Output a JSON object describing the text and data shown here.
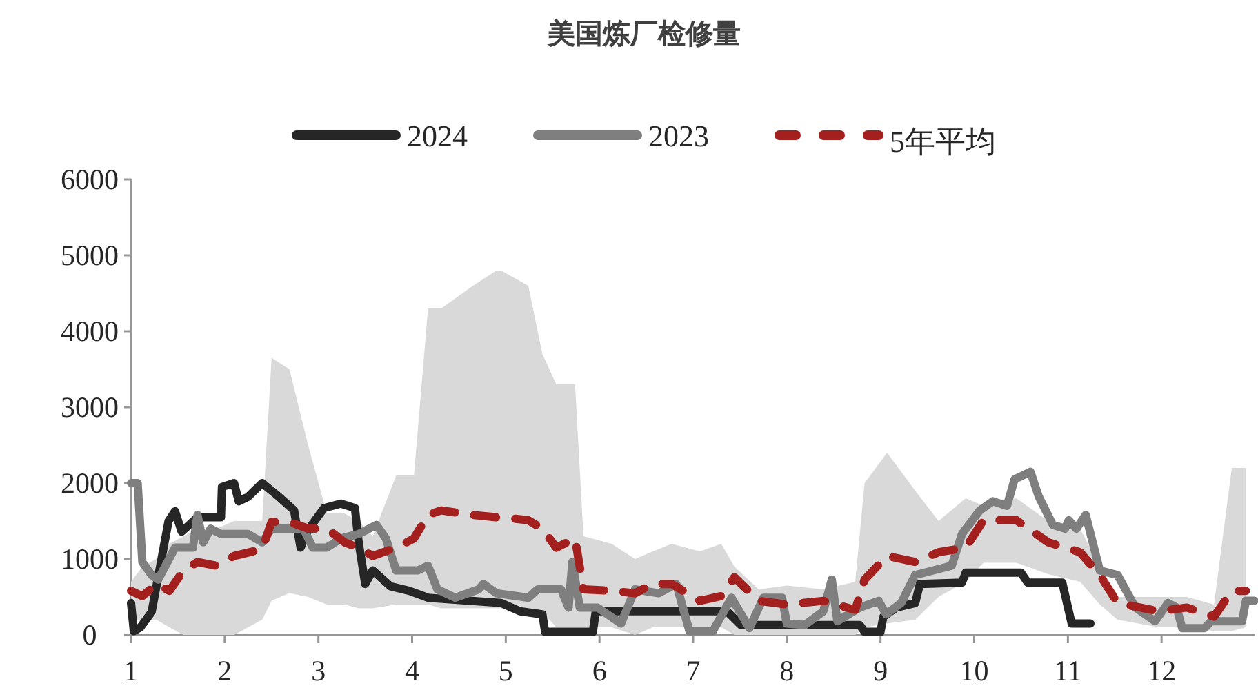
{
  "chart_data": {
    "type": "line",
    "title": "美国炼厂检修量",
    "x": [
      1.0,
      1.03,
      1.1,
      1.22,
      1.4,
      1.47,
      1.54,
      1.71,
      1.96,
      1.97,
      2.1,
      2.15,
      2.25,
      2.4,
      2.55,
      2.74,
      2.81,
      2.9,
      3.06,
      3.24,
      3.39,
      3.43,
      3.5,
      3.58,
      3.77,
      3.97,
      4.17,
      4.95,
      5.15,
      5.39,
      5.42,
      5.93,
      5.96,
      7.36,
      7.51,
      8.78,
      8.83,
      9.0,
      9.03,
      9.17,
      9.37,
      9.42,
      9.87,
      9.91,
      10.5,
      10.57,
      10.94,
      11.04,
      11.24
    ],
    "series": [
      {
        "name": "2024",
        "color": "#262626",
        "line_style": "solid",
        "values": [
          420,
          50,
          100,
          300,
          1500,
          1630,
          1360,
          1550,
          1550,
          1950,
          2000,
          1760,
          1820,
          2000,
          1850,
          1640,
          1150,
          1400,
          1670,
          1730,
          1670,
          1220,
          670,
          850,
          640,
          580,
          490,
          420,
          310,
          270,
          40,
          40,
          310,
          310,
          130,
          130,
          40,
          40,
          240,
          360,
          420,
          670,
          690,
          820,
          820,
          690,
          690,
          150,
          150
        ]
      },
      {
        "name": "2023",
        "color": "#7f7f7f",
        "line_style": "solid",
        "x": [
          1.0,
          1.07,
          1.12,
          1.22,
          1.29,
          1.47,
          1.66,
          1.71,
          1.77,
          1.85,
          1.96,
          2.25,
          2.4,
          2.5,
          2.84,
          2.94,
          3.09,
          3.24,
          3.43,
          3.62,
          3.72,
          3.83,
          4.06,
          4.17,
          4.27,
          4.46,
          4.71,
          4.76,
          4.9,
          5.24,
          5.34,
          5.59,
          5.67,
          5.71,
          5.79,
          5.98,
          6.23,
          6.38,
          6.63,
          6.82,
          6.96,
          7.21,
          7.41,
          7.6,
          7.75,
          7.95,
          8.0,
          8.19,
          8.39,
          8.48,
          8.54,
          8.78,
          8.98,
          9.06,
          9.22,
          9.37,
          9.76,
          9.87,
          10.06,
          10.2,
          10.35,
          10.43,
          10.6,
          10.69,
          10.84,
          10.97,
          11.01,
          11.09,
          11.19,
          11.34,
          11.53,
          11.72,
          11.93,
          12.07,
          12.16,
          12.22,
          12.46,
          12.53,
          12.86,
          12.9,
          12.99
        ],
        "values": [
          2000,
          2000,
          960,
          790,
          730,
          1150,
          1150,
          1580,
          1220,
          1400,
          1330,
          1330,
          1220,
          1400,
          1400,
          1150,
          1150,
          1270,
          1330,
          1450,
          1270,
          850,
          850,
          910,
          600,
          490,
          600,
          670,
          550,
          490,
          600,
          600,
          360,
          960,
          360,
          360,
          150,
          600,
          550,
          670,
          50,
          50,
          490,
          90,
          490,
          490,
          150,
          130,
          310,
          730,
          180,
          360,
          450,
          270,
          420,
          790,
          910,
          1330,
          1640,
          1760,
          1700,
          2050,
          2150,
          1820,
          1450,
          1400,
          1510,
          1400,
          1580,
          850,
          790,
          360,
          180,
          420,
          360,
          90,
          90,
          180,
          180,
          450,
          450
        ]
      },
      {
        "name": "5年平均",
        "color": "#a3201f",
        "line_style": "dashed",
        "x": [
          1.0,
          1.12,
          1.27,
          1.41,
          1.56,
          1.71,
          1.91,
          2.1,
          2.4,
          2.5,
          2.69,
          2.89,
          3.09,
          3.28,
          3.43,
          3.58,
          3.83,
          4.02,
          4.17,
          4.31,
          4.65,
          4.9,
          4.95,
          5.24,
          5.39,
          5.54,
          5.74,
          5.83,
          6.13,
          6.38,
          6.57,
          6.77,
          7.07,
          7.3,
          7.44,
          7.7,
          8.0,
          8.39,
          8.73,
          8.83,
          9.07,
          9.37,
          9.62,
          9.91,
          10.1,
          10.45,
          10.79,
          11.13,
          11.34,
          11.53,
          11.97,
          12.27,
          12.56,
          12.75,
          12.9
        ],
        "values": [
          580,
          510,
          670,
          580,
          850,
          960,
          910,
          1040,
          1130,
          1490,
          1490,
          1400,
          1400,
          1220,
          1150,
          1040,
          1150,
          1270,
          1580,
          1640,
          1580,
          1550,
          1550,
          1510,
          1400,
          1150,
          1270,
          600,
          580,
          550,
          670,
          670,
          450,
          510,
          760,
          450,
          400,
          450,
          330,
          730,
          1040,
          960,
          1090,
          1150,
          1510,
          1510,
          1220,
          1090,
          790,
          420,
          310,
          360,
          240,
          580,
          580
        ],
        "lower": [
          200,
          200,
          200,
          100,
          0,
          0,
          0,
          0,
          200,
          450,
          550,
          500,
          400,
          400,
          350,
          350,
          400,
          400,
          400,
          350,
          350,
          350,
          350,
          300,
          300,
          100,
          100,
          100,
          100,
          0,
          100,
          100,
          100,
          100,
          0,
          0,
          0,
          0,
          0,
          100,
          150,
          200,
          500,
          700,
          950,
          950,
          800,
          700,
          400,
          200,
          100,
          100,
          50,
          50,
          100
        ],
        "upper": [
          700,
          900,
          1000,
          1200,
          1300,
          1400,
          1400,
          1500,
          1500,
          3650,
          3500,
          2500,
          1600,
          1600,
          1500,
          1300,
          2100,
          2100,
          4300,
          4300,
          4600,
          4800,
          4800,
          4600,
          3700,
          3300,
          3300,
          1300,
          1200,
          1000,
          1100,
          1200,
          1100,
          1200,
          900,
          600,
          650,
          600,
          700,
          2000,
          2400,
          1900,
          1500,
          1800,
          1700,
          1800,
          1500,
          1400,
          900,
          500,
          500,
          500,
          400,
          2200,
          2200
        ]
      }
    ],
    "xlim": [
      1,
      13
    ],
    "xticks": [
      1,
      2,
      3,
      4,
      5,
      6,
      7,
      8,
      9,
      10,
      11,
      12
    ],
    "ylim": [
      0,
      6000
    ],
    "yticks": [
      0,
      1000,
      2000,
      3000,
      4000,
      5000,
      6000
    ],
    "grid": false,
    "legend": "top",
    "marker": "none"
  }
}
